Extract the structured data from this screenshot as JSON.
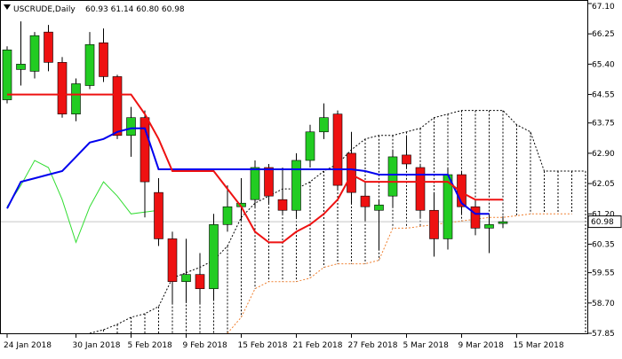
{
  "header": {
    "symbol": "USCRUDE,Daily",
    "ohlc": "60.93 61.14 60.80 60.98"
  },
  "current_price_label": "60.98",
  "colors": {
    "background": "#ffffff",
    "frame": "#000000",
    "bull_candle": "#22cc22",
    "bear_candle": "#ee1111",
    "tenkan": "#ee1111",
    "kijun": "#0000ee",
    "chikou": "#33dd33",
    "senkou_a": "#f08030",
    "senkou_b": "#000000",
    "cloud_hatch": "#000000",
    "price_line": "#c8c8c8"
  },
  "chart_data": {
    "type": "candlestick",
    "title": "USCRUDE,Daily",
    "ylim": [
      57.85,
      67.1
    ],
    "y_ticks": [
      {
        "value": 67.1,
        "label": "67.10"
      },
      {
        "value": 66.25,
        "label": "66.25"
      },
      {
        "value": 65.4,
        "label": "65.40"
      },
      {
        "value": 64.55,
        "label": "64.55"
      },
      {
        "value": 63.75,
        "label": "63.75"
      },
      {
        "value": 62.9,
        "label": "62.90"
      },
      {
        "value": 62.05,
        "label": "62.05"
      },
      {
        "value": 61.2,
        "label": "61.20"
      },
      {
        "value": 60.35,
        "label": "60.35"
      },
      {
        "value": 59.55,
        "label": "59.55"
      },
      {
        "value": 58.7,
        "label": "58.70"
      },
      {
        "value": 57.85,
        "label": "57.85"
      }
    ],
    "x_ticks": [
      {
        "index": 0,
        "label": "24 Jan 2018"
      },
      {
        "index": 5,
        "label": "30 Jan 2018"
      },
      {
        "index": 9,
        "label": "5 Feb 2018"
      },
      {
        "index": 13,
        "label": "9 Feb 2018"
      },
      {
        "index": 17,
        "label": "15 Feb 2018"
      },
      {
        "index": 21,
        "label": "21 Feb 2018"
      },
      {
        "index": 25,
        "label": "27 Feb 2018"
      },
      {
        "index": 29,
        "label": "5 Mar 2018"
      },
      {
        "index": 33,
        "label": "9 Mar 2018"
      },
      {
        "index": 37,
        "label": "15 Mar 2018"
      }
    ],
    "current_price": 60.98,
    "candles": [
      {
        "o": 64.4,
        "h": 65.9,
        "l": 64.3,
        "c": 65.8
      },
      {
        "o": 65.25,
        "h": 66.6,
        "l": 64.8,
        "c": 65.4
      },
      {
        "o": 65.2,
        "h": 66.3,
        "l": 65.0,
        "c": 66.2
      },
      {
        "o": 66.3,
        "h": 66.5,
        "l": 65.2,
        "c": 65.45
      },
      {
        "o": 65.45,
        "h": 65.6,
        "l": 63.9,
        "c": 64.0
      },
      {
        "o": 64.0,
        "h": 65.0,
        "l": 63.8,
        "c": 64.85
      },
      {
        "o": 64.8,
        "h": 66.3,
        "l": 64.7,
        "c": 65.95
      },
      {
        "o": 66.0,
        "h": 66.4,
        "l": 64.9,
        "c": 65.05
      },
      {
        "o": 65.05,
        "h": 65.1,
        "l": 63.3,
        "c": 63.4
      },
      {
        "o": 63.4,
        "h": 64.2,
        "l": 62.8,
        "c": 63.9
      },
      {
        "o": 63.9,
        "h": 64.1,
        "l": 61.1,
        "c": 62.1
      },
      {
        "o": 61.8,
        "h": 62.2,
        "l": 60.3,
        "c": 60.5
      },
      {
        "o": 60.5,
        "h": 60.7,
        "l": 58.7,
        "c": 59.3
      },
      {
        "o": 59.3,
        "h": 60.5,
        "l": 58.7,
        "c": 59.5
      },
      {
        "o": 59.5,
        "h": 60.1,
        "l": 58.7,
        "c": 59.1
      },
      {
        "o": 59.1,
        "h": 61.2,
        "l": 58.8,
        "c": 60.9
      },
      {
        "o": 60.9,
        "h": 62.0,
        "l": 60.7,
        "c": 61.4
      },
      {
        "o": 61.4,
        "h": 62.2,
        "l": 61.0,
        "c": 61.5
      },
      {
        "o": 61.6,
        "h": 62.7,
        "l": 61.4,
        "c": 62.5
      },
      {
        "o": 62.5,
        "h": 62.6,
        "l": 61.5,
        "c": 61.7
      },
      {
        "o": 61.6,
        "h": 62.5,
        "l": 61.2,
        "c": 61.3
      },
      {
        "o": 61.3,
        "h": 62.9,
        "l": 61.1,
        "c": 62.7
      },
      {
        "o": 62.7,
        "h": 63.7,
        "l": 62.5,
        "c": 63.5
      },
      {
        "o": 63.5,
        "h": 64.3,
        "l": 63.3,
        "c": 63.9
      },
      {
        "o": 64.0,
        "h": 64.1,
        "l": 61.9,
        "c": 62.0
      },
      {
        "o": 62.9,
        "h": 63.5,
        "l": 61.5,
        "c": 61.8
      },
      {
        "o": 61.7,
        "h": 62.1,
        "l": 61.0,
        "c": 61.4
      },
      {
        "o": 61.3,
        "h": 61.6,
        "l": 60.2,
        "c": 61.45
      },
      {
        "o": 61.7,
        "h": 63.0,
        "l": 61.4,
        "c": 62.8
      },
      {
        "o": 62.85,
        "h": 63.4,
        "l": 62.5,
        "c": 62.6
      },
      {
        "o": 62.5,
        "h": 62.6,
        "l": 61.1,
        "c": 61.3
      },
      {
        "o": 61.3,
        "h": 61.8,
        "l": 60.0,
        "c": 60.5
      },
      {
        "o": 60.5,
        "h": 62.5,
        "l": 60.2,
        "c": 62.3
      },
      {
        "o": 62.3,
        "h": 62.4,
        "l": 61.2,
        "c": 61.4
      },
      {
        "o": 61.4,
        "h": 61.6,
        "l": 60.6,
        "c": 60.8
      },
      {
        "o": 60.8,
        "h": 61.2,
        "l": 60.1,
        "c": 60.9
      },
      {
        "o": 60.93,
        "h": 61.14,
        "l": 60.8,
        "c": 60.98
      }
    ],
    "tenkan_sen": [
      64.55,
      64.55,
      64.55,
      64.55,
      64.55,
      64.55,
      64.55,
      64.55,
      64.55,
      64.55,
      64.0,
      63.3,
      62.4,
      62.4,
      62.4,
      62.4,
      61.9,
      61.4,
      60.7,
      60.4,
      60.4,
      60.7,
      60.9,
      61.2,
      61.6,
      62.3,
      62.1,
      62.1,
      62.1,
      62.1,
      62.1,
      62.1,
      62.1,
      61.8,
      61.6,
      61.6,
      61.6
    ],
    "kijun_sen": [
      61.35,
      62.1,
      62.2,
      62.3,
      62.4,
      62.8,
      63.2,
      63.3,
      63.5,
      63.6,
      63.6,
      62.45,
      62.45,
      62.45,
      62.45,
      62.45,
      62.45,
      62.45,
      62.45,
      62.45,
      62.45,
      62.45,
      62.45,
      62.45,
      62.45,
      62.45,
      62.4,
      62.3,
      62.3,
      62.3,
      62.3,
      62.3,
      62.3,
      61.5,
      61.2,
      61.2
    ],
    "chikou_span": [
      61.4,
      62.0,
      62.7,
      62.5,
      61.6,
      60.4,
      61.4,
      62.1,
      61.7,
      61.2,
      61.25,
      61.3
    ],
    "senkou_span_a": [
      null,
      null,
      null,
      null,
      null,
      null,
      null,
      null,
      null,
      null,
      null,
      null,
      null,
      null,
      null,
      null,
      57.85,
      58.3,
      59.1,
      59.3,
      59.3,
      59.3,
      59.4,
      59.7,
      59.8,
      59.8,
      59.8,
      59.9,
      60.8,
      60.8,
      60.85,
      60.9,
      60.95,
      61.0,
      61.05,
      61.1,
      61.1,
      61.15,
      61.2,
      61.2,
      61.2,
      61.2
    ],
    "senkou_span_b": [
      null,
      null,
      null,
      null,
      null,
      null,
      57.85,
      57.95,
      58.1,
      58.3,
      58.4,
      58.6,
      59.4,
      59.55,
      59.7,
      59.9,
      60.3,
      61.1,
      61.5,
      61.7,
      61.9,
      61.9,
      62.1,
      62.4,
      62.6,
      63.0,
      63.3,
      63.4,
      63.4,
      63.5,
      63.6,
      63.9,
      64.0,
      64.1,
      64.1,
      64.1,
      64.1,
      63.7,
      63.5,
      62.4,
      62.4,
      62.4,
      62.4
    ]
  }
}
